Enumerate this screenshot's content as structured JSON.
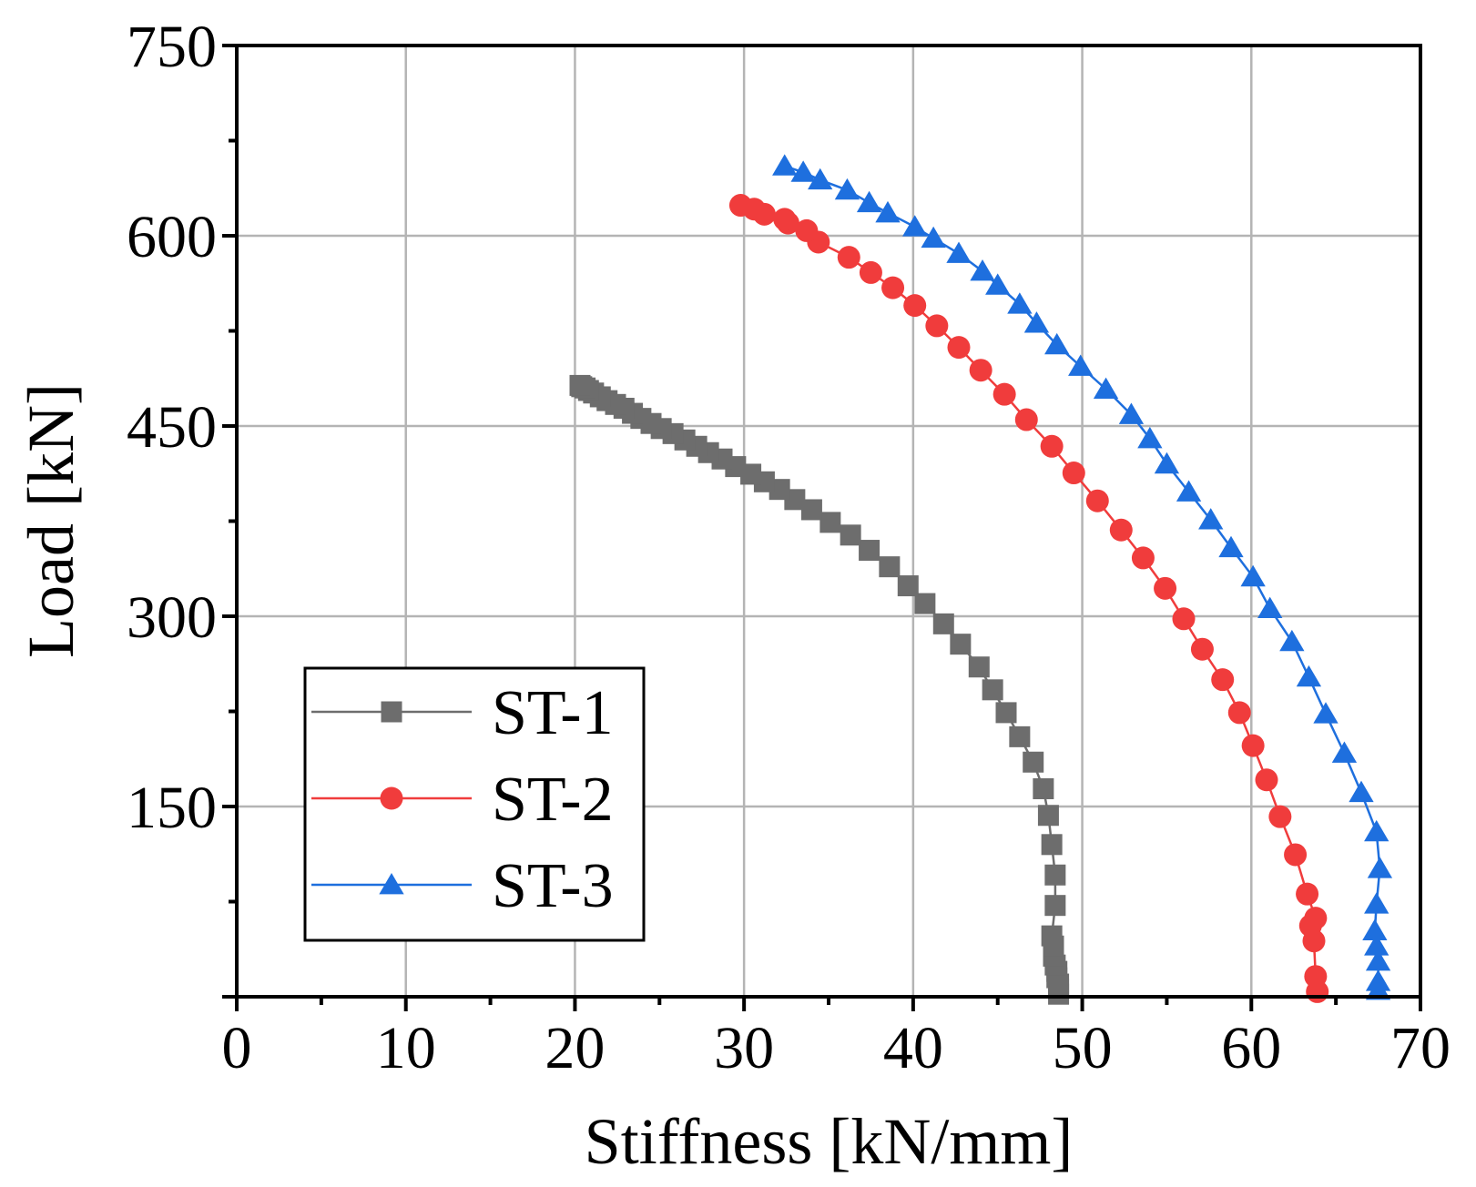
{
  "chart_data": {
    "type": "scatter",
    "title": "",
    "xlabel": "Stiffness [kN/mm]",
    "ylabel": "Load [kN]",
    "xlim": [
      0,
      70
    ],
    "ylim": [
      0,
      750
    ],
    "xticks": [
      0,
      10,
      20,
      30,
      40,
      50,
      60,
      70
    ],
    "yticks": [
      150,
      300,
      450,
      600,
      750
    ],
    "grid": true,
    "legend_position": "bottom-left",
    "series": [
      {
        "name": "ST-1",
        "color": "#6d6d6d",
        "marker": "square",
        "points": [
          [
            48.6,
            2
          ],
          [
            48.6,
            6
          ],
          [
            48.6,
            10
          ],
          [
            48.5,
            15
          ],
          [
            48.5,
            20
          ],
          [
            48.4,
            25
          ],
          [
            48.3,
            32
          ],
          [
            48.3,
            40
          ],
          [
            48.2,
            48
          ],
          [
            48.4,
            72
          ],
          [
            48.4,
            96
          ],
          [
            48.2,
            120
          ],
          [
            48.0,
            143
          ],
          [
            47.7,
            164
          ],
          [
            47.1,
            185
          ],
          [
            46.3,
            205
          ],
          [
            45.5,
            224
          ],
          [
            44.7,
            242
          ],
          [
            43.9,
            260
          ],
          [
            42.8,
            278
          ],
          [
            41.8,
            294
          ],
          [
            40.7,
            310
          ],
          [
            39.7,
            324
          ],
          [
            38.6,
            339
          ],
          [
            37.4,
            352
          ],
          [
            36.3,
            364
          ],
          [
            35.1,
            374
          ],
          [
            34.0,
            384
          ],
          [
            33.0,
            392
          ],
          [
            32.1,
            400
          ],
          [
            31.2,
            406
          ],
          [
            30.4,
            412
          ],
          [
            29.5,
            418
          ],
          [
            28.7,
            424
          ],
          [
            27.9,
            429
          ],
          [
            27.2,
            434
          ],
          [
            26.5,
            439
          ],
          [
            25.8,
            444
          ],
          [
            25.1,
            448
          ],
          [
            24.5,
            452
          ],
          [
            23.9,
            456
          ],
          [
            23.4,
            460
          ],
          [
            22.9,
            464
          ],
          [
            22.4,
            467
          ],
          [
            21.9,
            470
          ],
          [
            21.5,
            473
          ],
          [
            21.1,
            476
          ],
          [
            20.8,
            478
          ],
          [
            20.6,
            480
          ],
          [
            20.4,
            481
          ],
          [
            20.3,
            482
          ]
        ]
      },
      {
        "name": "ST-2",
        "color": "#f03c3c",
        "marker": "circle",
        "points": [
          [
            63.9,
            4
          ],
          [
            63.8,
            16
          ],
          [
            63.7,
            44
          ],
          [
            63.8,
            62
          ],
          [
            63.5,
            56
          ],
          [
            63.3,
            81
          ],
          [
            62.6,
            112
          ],
          [
            61.7,
            142
          ],
          [
            60.9,
            171
          ],
          [
            60.1,
            198
          ],
          [
            59.3,
            224
          ],
          [
            58.3,
            250
          ],
          [
            57.1,
            274
          ],
          [
            56.0,
            298
          ],
          [
            54.9,
            322
          ],
          [
            53.6,
            346
          ],
          [
            52.3,
            368
          ],
          [
            50.9,
            391
          ],
          [
            49.5,
            413
          ],
          [
            48.2,
            434
          ],
          [
            46.7,
            455
          ],
          [
            45.4,
            475
          ],
          [
            44.0,
            494
          ],
          [
            42.7,
            512
          ],
          [
            41.4,
            529
          ],
          [
            40.1,
            545
          ],
          [
            38.8,
            559
          ],
          [
            37.5,
            571
          ],
          [
            36.2,
            583
          ],
          [
            34.4,
            595
          ],
          [
            33.7,
            604
          ],
          [
            32.6,
            610
          ],
          [
            32.4,
            613
          ],
          [
            31.2,
            617
          ],
          [
            30.6,
            621
          ],
          [
            29.8,
            624
          ]
        ]
      },
      {
        "name": "ST-3",
        "color": "#1e6fde",
        "marker": "triangle",
        "points": [
          [
            67.5,
            5
          ],
          [
            67.5,
            12
          ],
          [
            67.5,
            28
          ],
          [
            67.4,
            40
          ],
          [
            67.3,
            52
          ],
          [
            67.4,
            73
          ],
          [
            67.6,
            101
          ],
          [
            67.4,
            130
          ],
          [
            66.5,
            161
          ],
          [
            65.5,
            192
          ],
          [
            64.4,
            223
          ],
          [
            63.4,
            252
          ],
          [
            62.4,
            280
          ],
          [
            61.1,
            306
          ],
          [
            60.1,
            331
          ],
          [
            58.8,
            354
          ],
          [
            57.6,
            376
          ],
          [
            56.3,
            398
          ],
          [
            55.0,
            420
          ],
          [
            54.0,
            440
          ],
          [
            52.9,
            459
          ],
          [
            51.4,
            479
          ],
          [
            49.9,
            497
          ],
          [
            48.5,
            514
          ],
          [
            47.3,
            531
          ],
          [
            46.3,
            546
          ],
          [
            45.0,
            561
          ],
          [
            44.1,
            572
          ],
          [
            42.7,
            586
          ],
          [
            41.2,
            598
          ],
          [
            40.1,
            607
          ],
          [
            38.5,
            618
          ],
          [
            37.4,
            626
          ],
          [
            36.1,
            636
          ],
          [
            34.5,
            644
          ],
          [
            33.5,
            650
          ],
          [
            32.4,
            655
          ]
        ]
      }
    ]
  }
}
